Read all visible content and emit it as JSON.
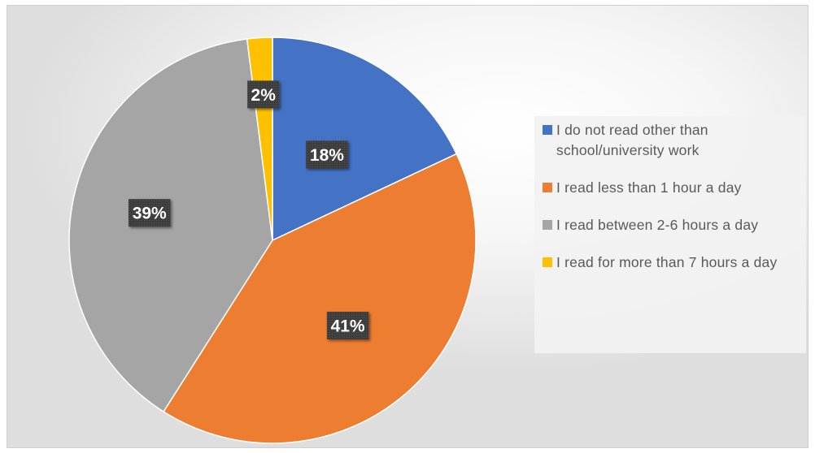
{
  "chart_data": {
    "type": "pie",
    "categories": [
      "I do not read other than school/university work",
      "I read less than 1 hour a day",
      "I read between 2-6 hours a day",
      "I read for more than 7 hours a day"
    ],
    "values": [
      18,
      41,
      39,
      2
    ],
    "labels": [
      "18%",
      "41%",
      "39%",
      "2%"
    ],
    "colors": [
      "#4472C4",
      "#ED7D31",
      "#A5A5A5",
      "#FFC000"
    ],
    "start_angle": "12 o'clock",
    "direction": "clockwise",
    "legend_position": "right"
  },
  "legend": {
    "items": [
      {
        "label": "I do not read other than school/university work",
        "color": "#4472C4"
      },
      {
        "label": "I read less than 1 hour a day",
        "color": "#ED7D31"
      },
      {
        "label": "I read between 2-6 hours a day",
        "color": "#A5A5A5"
      },
      {
        "label": "I read for more than 7 hours a day",
        "color": "#FFC000"
      }
    ]
  },
  "colors": {
    "label_box": "#404040",
    "legend_text": "#595959"
  }
}
